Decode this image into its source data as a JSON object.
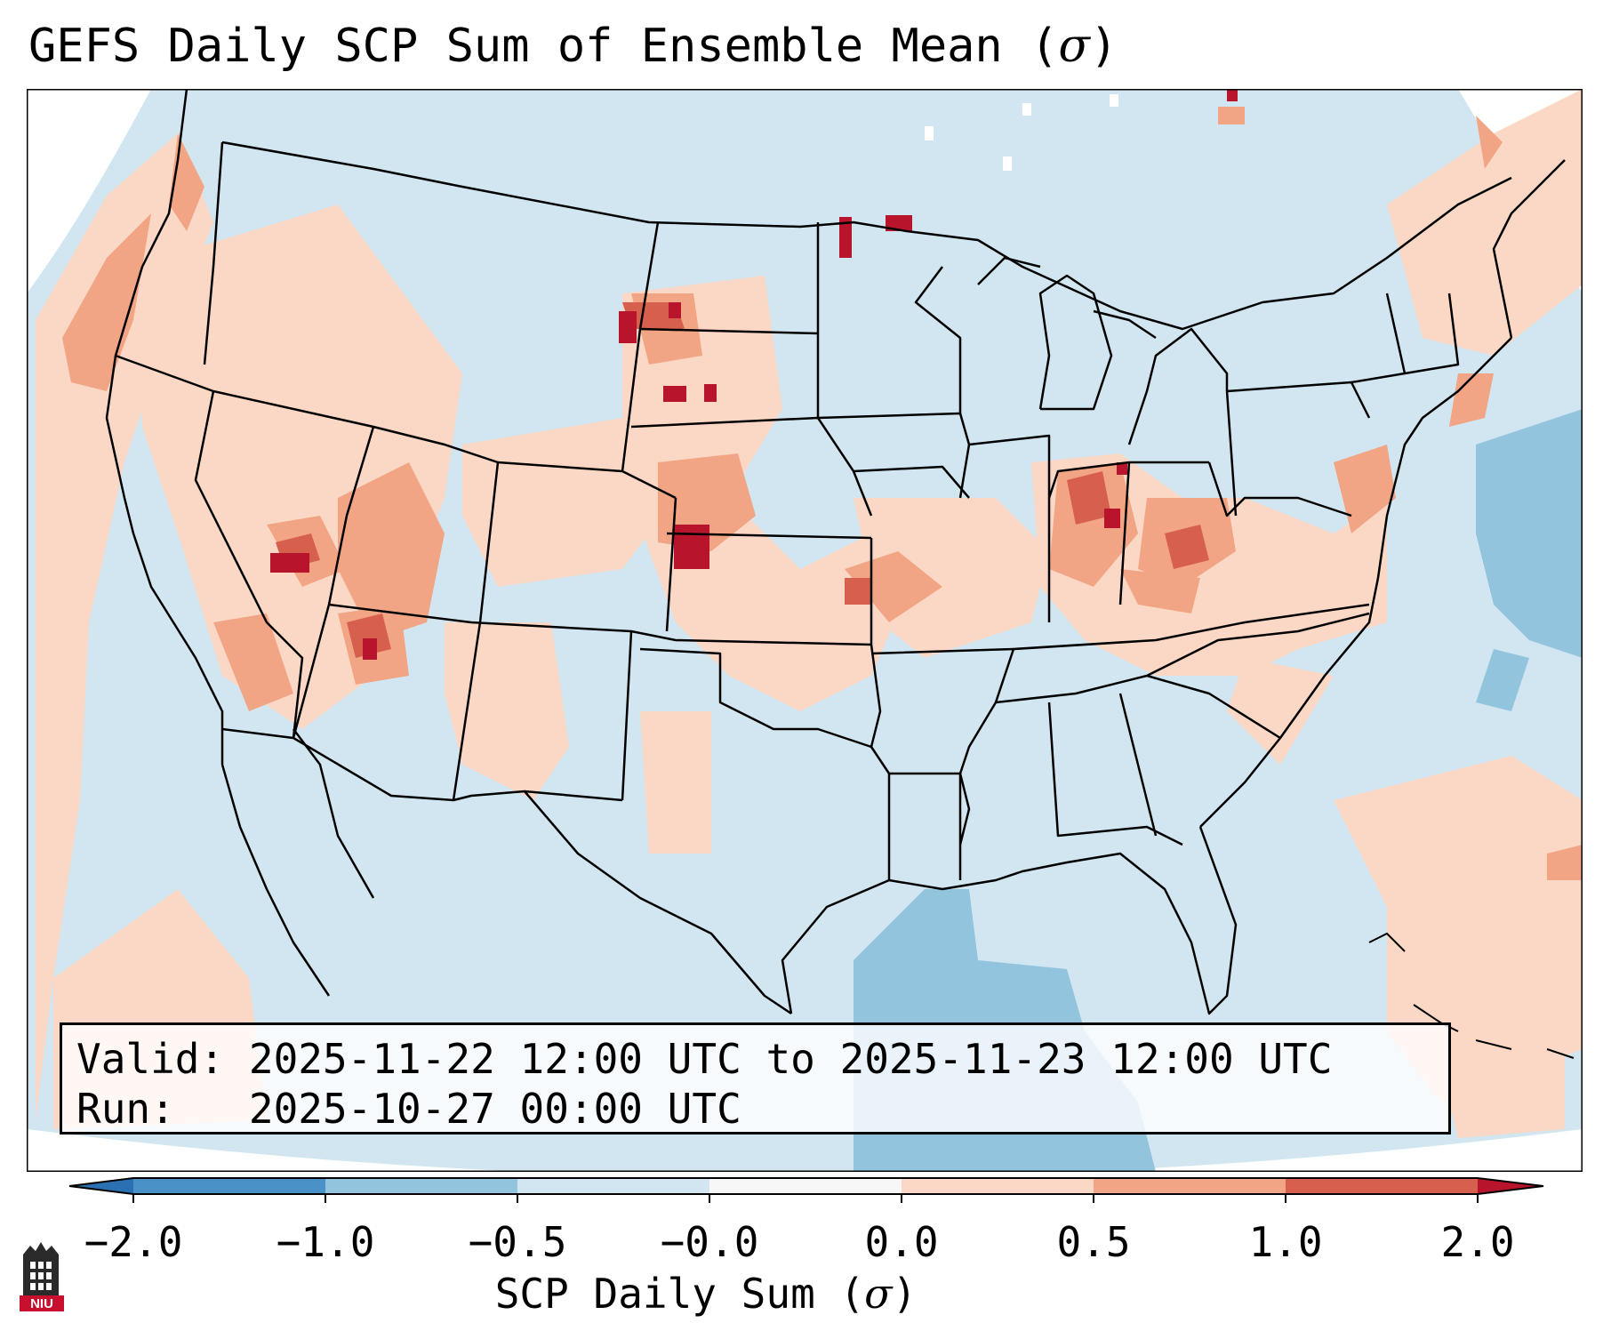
{
  "title": {
    "text": "GEFS Daily SCP Sum of Ensemble Mean (",
    "symbol": "σ",
    "close": ")"
  },
  "info_box": {
    "valid_label": "Valid:",
    "valid_value": "2025-11-22 12:00 UTC to 2025-11-23 12:00 UTC",
    "run_label": "Run:",
    "run_value": "2025-10-27 00:00 UTC"
  },
  "colorbar": {
    "title": "SCP Daily Sum (",
    "symbol": "σ",
    "close": ")",
    "tick_labels": [
      "−2.0",
      "−1.0",
      "−0.5",
      "−0.0",
      "0.0",
      "0.5",
      "1.0",
      "2.0"
    ],
    "bins": [
      {
        "from": -2.0,
        "to": -1.0,
        "color": "#4a91c7"
      },
      {
        "from": -1.0,
        "to": -0.5,
        "color": "#92c4de"
      },
      {
        "from": -0.5,
        "to": 0.0,
        "color": "#d2e6f1"
      },
      {
        "from": 0.0,
        "to": 0.0,
        "color": "#f7f7f7"
      },
      {
        "from": 0.0,
        "to": 0.5,
        "color": "#fbd8c5"
      },
      {
        "from": 0.5,
        "to": 1.0,
        "color": "#f2a585"
      },
      {
        "from": 1.0,
        "to": 2.0,
        "color": "#d65f4d"
      },
      {
        "from": 2.0,
        "to": 99,
        "color": "#b8142b"
      }
    ],
    "under_color": "#2c70b4",
    "over_color": "#b8142b"
  },
  "map": {
    "region": "Contiguous United States",
    "background_color": "#d2e6f1"
  },
  "logo": {
    "text": "NIU"
  }
}
